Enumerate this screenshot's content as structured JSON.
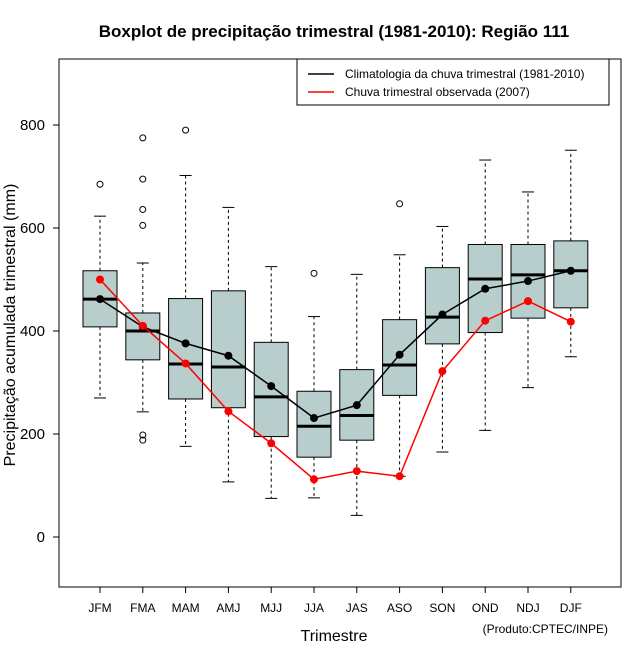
{
  "chart_data": {
    "type": "boxplot",
    "title": "Boxplot de precipitação trimestral (1981-2010): Região 111",
    "xlabel": "Trimestre",
    "ylabel": "Precipitação acumulada trimestral (mm)",
    "credit": "(Produto:CPTEC/INPE)",
    "ylim": [
      -95,
      930
    ],
    "yticks": [
      0,
      200,
      400,
      600,
      800
    ],
    "categories": [
      "JFM",
      "FMA",
      "MAM",
      "AMJ",
      "MJJ",
      "JJA",
      "JAS",
      "ASO",
      "SON",
      "OND",
      "NDJ",
      "DJF"
    ],
    "boxes": [
      {
        "whisker_low": 270,
        "q1": 408,
        "median": 462,
        "q3": 517,
        "whisker_high": 623,
        "outliers": [
          685
        ]
      },
      {
        "whisker_low": 243,
        "q1": 344,
        "median": 400,
        "q3": 435,
        "whisker_high": 532,
        "outliers": [
          775,
          695,
          636,
          605,
          198,
          188
        ]
      },
      {
        "whisker_low": 176,
        "q1": 268,
        "median": 336,
        "q3": 463,
        "whisker_high": 702,
        "outliers": [
          790
        ]
      },
      {
        "whisker_low": 107,
        "q1": 251,
        "median": 330,
        "q3": 478,
        "whisker_high": 640,
        "outliers": []
      },
      {
        "whisker_low": 75,
        "q1": 195,
        "median": 272,
        "q3": 378,
        "whisker_high": 525,
        "outliers": []
      },
      {
        "whisker_low": 76,
        "q1": 155,
        "median": 215,
        "q3": 283,
        "whisker_high": 428,
        "outliers": [
          512
        ]
      },
      {
        "whisker_low": 42,
        "q1": 188,
        "median": 236,
        "q3": 325,
        "whisker_high": 510,
        "outliers": []
      },
      {
        "whisker_low": 118,
        "q1": 275,
        "median": 334,
        "q3": 422,
        "whisker_high": 548,
        "outliers": [
          647
        ]
      },
      {
        "whisker_low": 165,
        "q1": 375,
        "median": 427,
        "q3": 523,
        "whisker_high": 603,
        "outliers": []
      },
      {
        "whisker_low": 207,
        "q1": 397,
        "median": 501,
        "q3": 568,
        "whisker_high": 732,
        "outliers": []
      },
      {
        "whisker_low": 290,
        "q1": 425,
        "median": 509,
        "q3": 568,
        "whisker_high": 670,
        "outliers": []
      },
      {
        "whisker_low": 350,
        "q1": 445,
        "median": 517,
        "q3": 575,
        "whisker_high": 751,
        "outliers": []
      }
    ],
    "series": [
      {
        "name": "Climatologia da chuva trimestral (1981-2010)",
        "color": "#000000",
        "values": [
          462,
          408,
          376,
          352,
          293,
          231,
          256,
          354,
          432,
          482,
          497,
          517
        ]
      },
      {
        "name": "Chuva trimestral observada (2007)",
        "color": "#ff0000",
        "values": [
          500,
          410,
          337,
          244,
          182,
          112,
          128,
          118,
          322,
          420,
          458,
          418
        ]
      }
    ],
    "legend_position": "top-right",
    "box_fill": "#b8cecd",
    "grid": false
  }
}
